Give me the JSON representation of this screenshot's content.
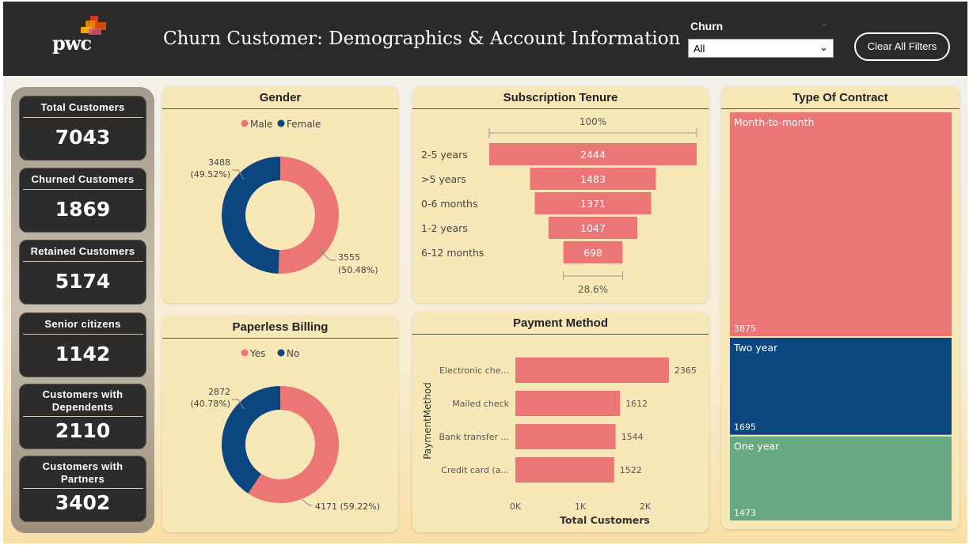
{
  "header": {
    "brand": "pwc",
    "title": "Churn Customer: Demographics &  Account Information",
    "filter_label": "Churn",
    "filter_value": "All",
    "clear_button": "Clear All Filters"
  },
  "kpis": [
    {
      "label": "Total Customers",
      "value": "7043"
    },
    {
      "label": "Churned Customers",
      "value": "1869"
    },
    {
      "label": "Retained Customers",
      "value": "5174"
    },
    {
      "label": "Senior citizens",
      "value": "1142"
    },
    {
      "label": "Customers with Dependents",
      "value": "2110"
    },
    {
      "label": "Customers with Partners",
      "value": "3402"
    }
  ],
  "colors": {
    "pink": "#ec7576",
    "navy": "#0c4680",
    "green": "#67a885",
    "panel": "#f8e8b8"
  },
  "chart_data": [
    {
      "id": "gender",
      "type": "pie",
      "title": "Gender",
      "legend": [
        "Male",
        "Female"
      ],
      "values": [
        3555,
        3488
      ],
      "labels": [
        [
          "3555",
          "(50.48%)"
        ],
        [
          "3488",
          "(49.52%)"
        ]
      ]
    },
    {
      "id": "paperless",
      "type": "pie",
      "title": "Paperless Billing",
      "legend": [
        "Yes",
        "No"
      ],
      "values": [
        4171,
        2872
      ],
      "labels": [
        [
          "4171 (59.22%)"
        ],
        [
          "2872",
          "(40.78%)"
        ]
      ]
    },
    {
      "id": "tenure",
      "type": "bar",
      "title": "Subscription Tenure",
      "categories": [
        "2-5 years",
        ">5 years",
        "0-6 months",
        "1-2 years",
        "6-12 months"
      ],
      "values": [
        2444,
        1483,
        1371,
        1047,
        698
      ],
      "top_pct": "100%",
      "bottom_pct": "28.6%"
    },
    {
      "id": "payment",
      "type": "bar",
      "title": "Payment Method",
      "categories": [
        "Electronic che...",
        "Mailed check",
        "Bank transfer ...",
        "Credit card (a..."
      ],
      "values": [
        2365,
        1612,
        1544,
        1522
      ],
      "xticks": [
        "0K",
        "1K",
        "2K"
      ],
      "xmax": 2500,
      "xlabel": "Total Customers",
      "ylabel": "PaymentMethod"
    },
    {
      "id": "contract",
      "type": "heatmap",
      "title": "Type Of Contract",
      "categories": [
        "Month-to-month",
        "Two year",
        "One year"
      ],
      "values": [
        3875,
        1695,
        1473
      ]
    }
  ]
}
